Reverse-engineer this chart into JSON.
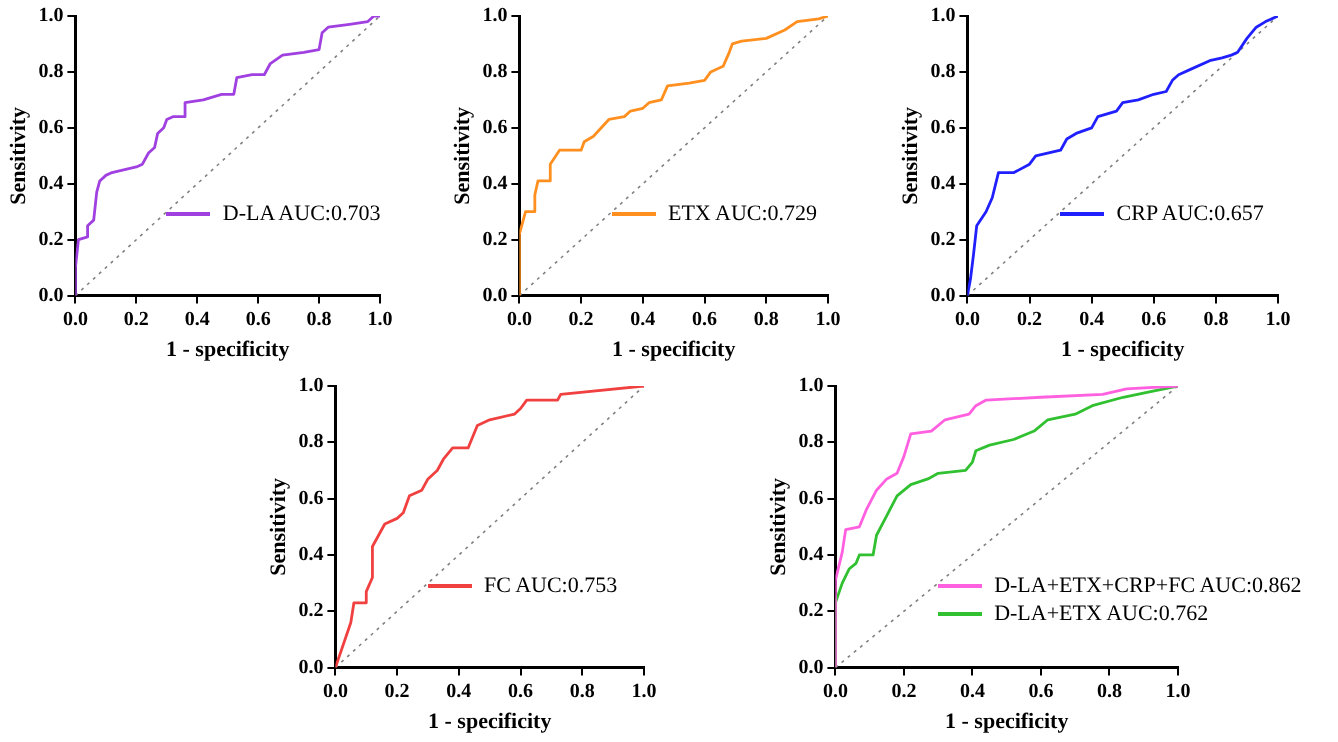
{
  "chart_data": [
    {
      "type": "line",
      "xlabel": "1 - specificity",
      "ylabel": "Sensitivity",
      "xlim": [
        0,
        1
      ],
      "ylim": [
        0,
        1
      ],
      "xticks": [
        {
          "value": 0,
          "label": "0.0"
        },
        {
          "value": 0.2,
          "label": "0.2"
        },
        {
          "value": 0.4,
          "label": "0.4"
        },
        {
          "value": 0.6,
          "label": "0.6"
        },
        {
          "value": 0.8,
          "label": "0.8"
        },
        {
          "value": 1,
          "label": "1.0"
        }
      ],
      "yticks": [
        {
          "value": 0,
          "label": "0.0"
        },
        {
          "value": 0.2,
          "label": "0.2"
        },
        {
          "value": 0.4,
          "label": "0.4"
        },
        {
          "value": 0.6,
          "label": "0.6"
        },
        {
          "value": 0.8,
          "label": "0.8"
        },
        {
          "value": 1,
          "label": "1.0"
        }
      ],
      "grid": false,
      "legend": "bottom right",
      "marker": "none",
      "series": [
        {
          "name": "D-LA AUC:0.703",
          "color": "#a040e0",
          "x": [
            0,
            0,
            0.01,
            0.04,
            0.04,
            0.06,
            0.07,
            0.08,
            0.1,
            0.12,
            0.2,
            0.22,
            0.24,
            0.26,
            0.27,
            0.29,
            0.3,
            0.32,
            0.36,
            0.36,
            0.42,
            0.48,
            0.52,
            0.53,
            0.58,
            0.62,
            0.64,
            0.68,
            0.75,
            0.8,
            0.81,
            0.83,
            0.9,
            0.96,
            0.98,
            1
          ],
          "values": [
            0,
            0.1,
            0.2,
            0.21,
            0.25,
            0.27,
            0.37,
            0.41,
            0.43,
            0.44,
            0.46,
            0.47,
            0.51,
            0.53,
            0.58,
            0.6,
            0.63,
            0.64,
            0.64,
            0.69,
            0.7,
            0.72,
            0.72,
            0.78,
            0.79,
            0.79,
            0.83,
            0.86,
            0.87,
            0.88,
            0.94,
            0.96,
            0.97,
            0.98,
            1,
            1
          ]
        },
        {
          "color": "#808080",
          "line_style": "dotted",
          "x": [
            0,
            1
          ],
          "values": [
            0,
            1
          ]
        }
      ]
    },
    {
      "type": "line",
      "xlabel": "1 - specificity",
      "ylabel": "Sensitivity",
      "xlim": [
        0,
        1
      ],
      "ylim": [
        0,
        1
      ],
      "xticks": [
        {
          "value": 0,
          "label": "0.0"
        },
        {
          "value": 0.2,
          "label": "0.2"
        },
        {
          "value": 0.4,
          "label": "0.4"
        },
        {
          "value": 0.6,
          "label": "0.6"
        },
        {
          "value": 0.8,
          "label": "0.8"
        },
        {
          "value": 1,
          "label": "1.0"
        }
      ],
      "yticks": [
        {
          "value": 0,
          "label": "0.0"
        },
        {
          "value": 0.2,
          "label": "0.2"
        },
        {
          "value": 0.4,
          "label": "0.4"
        },
        {
          "value": 0.6,
          "label": "0.6"
        },
        {
          "value": 0.8,
          "label": "0.8"
        },
        {
          "value": 1,
          "label": "1.0"
        }
      ],
      "grid": false,
      "legend": "bottom right",
      "marker": "none",
      "series": [
        {
          "name": "ETX AUC:0.729",
          "color": "#ff9020",
          "x": [
            0,
            0,
            0.02,
            0.05,
            0.05,
            0.06,
            0.1,
            0.1,
            0.13,
            0.2,
            0.21,
            0.24,
            0.29,
            0.34,
            0.36,
            0.4,
            0.42,
            0.46,
            0.48,
            0.55,
            0.6,
            0.62,
            0.66,
            0.68,
            0.69,
            0.72,
            0.8,
            0.86,
            0.9,
            0.97,
            1
          ],
          "values": [
            0,
            0.22,
            0.3,
            0.3,
            0.36,
            0.41,
            0.41,
            0.47,
            0.52,
            0.52,
            0.55,
            0.57,
            0.63,
            0.64,
            0.66,
            0.67,
            0.69,
            0.7,
            0.75,
            0.76,
            0.77,
            0.8,
            0.82,
            0.87,
            0.9,
            0.91,
            0.92,
            0.95,
            0.98,
            0.99,
            1
          ]
        },
        {
          "color": "#808080",
          "line_style": "dotted",
          "x": [
            0,
            1
          ],
          "values": [
            0,
            1
          ]
        }
      ]
    },
    {
      "type": "line",
      "xlabel": "1 - specificity",
      "ylabel": "Sensitivity",
      "xlim": [
        0,
        1
      ],
      "ylim": [
        0,
        1
      ],
      "xticks": [
        {
          "value": 0,
          "label": "0.0"
        },
        {
          "value": 0.2,
          "label": "0.2"
        },
        {
          "value": 0.4,
          "label": "0.4"
        },
        {
          "value": 0.6,
          "label": "0.6"
        },
        {
          "value": 0.8,
          "label": "0.8"
        },
        {
          "value": 1,
          "label": "1.0"
        }
      ],
      "yticks": [
        {
          "value": 0,
          "label": "0.0"
        },
        {
          "value": 0.2,
          "label": "0.2"
        },
        {
          "value": 0.4,
          "label": "0.4"
        },
        {
          "value": 0.6,
          "label": "0.6"
        },
        {
          "value": 0.8,
          "label": "0.8"
        },
        {
          "value": 1,
          "label": "1.0"
        }
      ],
      "grid": false,
      "legend": "bottom right",
      "marker": "none",
      "series": [
        {
          "name": "CRP AUC:0.657",
          "color": "#2020ff",
          "x": [
            0,
            0.01,
            0.02,
            0.03,
            0.06,
            0.08,
            0.1,
            0.15,
            0.2,
            0.22,
            0.3,
            0.32,
            0.35,
            0.4,
            0.42,
            0.48,
            0.5,
            0.55,
            0.6,
            0.64,
            0.66,
            0.68,
            0.72,
            0.78,
            0.82,
            0.85,
            0.87,
            0.9,
            0.93,
            0.96,
            1
          ],
          "values": [
            0,
            0.06,
            0.15,
            0.25,
            0.3,
            0.35,
            0.44,
            0.44,
            0.47,
            0.5,
            0.52,
            0.56,
            0.58,
            0.6,
            0.64,
            0.66,
            0.69,
            0.7,
            0.72,
            0.73,
            0.77,
            0.79,
            0.81,
            0.84,
            0.85,
            0.86,
            0.87,
            0.92,
            0.96,
            0.98,
            1
          ]
        },
        {
          "color": "#808080",
          "line_style": "dotted",
          "x": [
            0,
            1
          ],
          "values": [
            0,
            1
          ]
        }
      ]
    },
    {
      "type": "line",
      "xlabel": "1 - specificity",
      "ylabel": "Sensitivity",
      "xlim": [
        0,
        1
      ],
      "ylim": [
        0,
        1
      ],
      "xticks": [
        {
          "value": 0,
          "label": "0.0"
        },
        {
          "value": 0.2,
          "label": "0.2"
        },
        {
          "value": 0.4,
          "label": "0.4"
        },
        {
          "value": 0.6,
          "label": "0.6"
        },
        {
          "value": 0.8,
          "label": "0.8"
        },
        {
          "value": 1,
          "label": "1.0"
        }
      ],
      "yticks": [
        {
          "value": 0,
          "label": "0.0"
        },
        {
          "value": 0.2,
          "label": "0.2"
        },
        {
          "value": 0.4,
          "label": "0.4"
        },
        {
          "value": 0.6,
          "label": "0.6"
        },
        {
          "value": 0.8,
          "label": "0.8"
        },
        {
          "value": 1,
          "label": "1.0"
        }
      ],
      "grid": false,
      "legend": "bottom right",
      "marker": "none",
      "series": [
        {
          "name": "FC AUC:0.753",
          "color": "#f04040",
          "x": [
            0,
            0.05,
            0.06,
            0.1,
            0.1,
            0.12,
            0.12,
            0.14,
            0.16,
            0.2,
            0.22,
            0.24,
            0.28,
            0.3,
            0.33,
            0.35,
            0.38,
            0.43,
            0.46,
            0.5,
            0.58,
            0.6,
            0.62,
            0.72,
            0.73,
            1
          ],
          "values": [
            0,
            0.16,
            0.23,
            0.23,
            0.27,
            0.32,
            0.43,
            0.47,
            0.51,
            0.53,
            0.55,
            0.61,
            0.63,
            0.67,
            0.7,
            0.74,
            0.78,
            0.78,
            0.86,
            0.88,
            0.9,
            0.92,
            0.95,
            0.95,
            0.97,
            1
          ]
        },
        {
          "color": "#808080",
          "line_style": "dotted",
          "x": [
            0,
            1
          ],
          "values": [
            0,
            1
          ]
        }
      ]
    },
    {
      "type": "line",
      "xlabel": "1 - specificity",
      "ylabel": "Sensitivity",
      "xlim": [
        0,
        1
      ],
      "ylim": [
        0,
        1
      ],
      "xticks": [
        {
          "value": 0,
          "label": "0.0"
        },
        {
          "value": 0.2,
          "label": "0.2"
        },
        {
          "value": 0.4,
          "label": "0.4"
        },
        {
          "value": 0.6,
          "label": "0.6"
        },
        {
          "value": 0.8,
          "label": "0.8"
        },
        {
          "value": 1,
          "label": "1.0"
        }
      ],
      "yticks": [
        {
          "value": 0,
          "label": "0.0"
        },
        {
          "value": 0.2,
          "label": "0.2"
        },
        {
          "value": 0.4,
          "label": "0.4"
        },
        {
          "value": 0.6,
          "label": "0.6"
        },
        {
          "value": 0.8,
          "label": "0.8"
        },
        {
          "value": 1,
          "label": "1.0"
        }
      ],
      "grid": false,
      "legend": "bottom right",
      "marker": "none",
      "series": [
        {
          "name": "D-LA+ETX+CRP+FC AUC:0.862",
          "color": "#ff60e0",
          "x": [
            0,
            0,
            0.02,
            0.03,
            0.07,
            0.09,
            0.12,
            0.15,
            0.18,
            0.2,
            0.22,
            0.28,
            0.32,
            0.39,
            0.41,
            0.44,
            0.6,
            0.78,
            0.85,
            1
          ],
          "values": [
            0,
            0.31,
            0.41,
            0.49,
            0.5,
            0.56,
            0.63,
            0.67,
            0.69,
            0.75,
            0.83,
            0.84,
            0.88,
            0.9,
            0.93,
            0.95,
            0.96,
            0.97,
            0.99,
            1
          ]
        },
        {
          "name": "D-LA+ETX AUC:0.762",
          "color": "#30c030",
          "x": [
            0,
            0,
            0.02,
            0.04,
            0.06,
            0.07,
            0.11,
            0.12,
            0.15,
            0.18,
            0.22,
            0.27,
            0.3,
            0.38,
            0.4,
            0.41,
            0.45,
            0.52,
            0.58,
            0.62,
            0.7,
            0.75,
            0.84,
            0.92,
            1
          ],
          "values": [
            0,
            0.23,
            0.3,
            0.35,
            0.37,
            0.4,
            0.4,
            0.47,
            0.54,
            0.61,
            0.65,
            0.67,
            0.69,
            0.7,
            0.73,
            0.77,
            0.79,
            0.81,
            0.84,
            0.88,
            0.9,
            0.93,
            0.96,
            0.98,
            1
          ]
        },
        {
          "color": "#808080",
          "line_style": "dotted",
          "x": [
            0,
            1
          ],
          "values": [
            0,
            1
          ]
        }
      ]
    }
  ]
}
